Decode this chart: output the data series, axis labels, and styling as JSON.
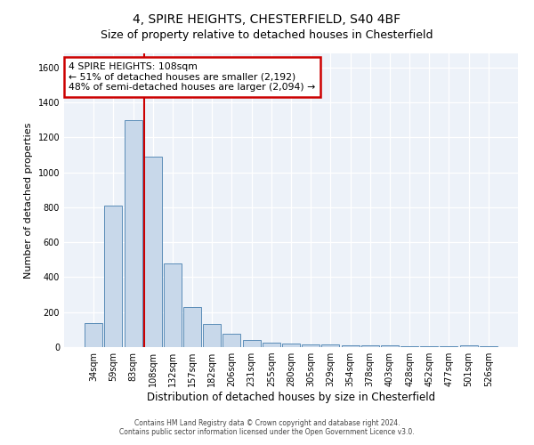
{
  "title": "4, SPIRE HEIGHTS, CHESTERFIELD, S40 4BF",
  "subtitle": "Size of property relative to detached houses in Chesterfield",
  "xlabel": "Distribution of detached houses by size in Chesterfield",
  "ylabel": "Number of detached properties",
  "bin_labels": [
    "34sqm",
    "59sqm",
    "83sqm",
    "108sqm",
    "132sqm",
    "157sqm",
    "182sqm",
    "206sqm",
    "231sqm",
    "255sqm",
    "280sqm",
    "305sqm",
    "329sqm",
    "354sqm",
    "378sqm",
    "403sqm",
    "428sqm",
    "452sqm",
    "477sqm",
    "501sqm",
    "526sqm"
  ],
  "bar_heights": [
    140,
    810,
    1300,
    1090,
    480,
    230,
    130,
    75,
    40,
    25,
    20,
    15,
    15,
    10,
    10,
    10,
    5,
    5,
    5,
    10,
    5
  ],
  "bar_color": "#c8d8ea",
  "bar_edge_color": "#5b8db8",
  "vline_color": "#cc0000",
  "annotation_text": "4 SPIRE HEIGHTS: 108sqm\n← 51% of detached houses are smaller (2,192)\n48% of semi-detached houses are larger (2,094) →",
  "annotation_box_color": "#ffffff",
  "annotation_box_edge_color": "#cc0000",
  "ylim": [
    0,
    1680
  ],
  "yticks": [
    0,
    200,
    400,
    600,
    800,
    1000,
    1200,
    1400,
    1600
  ],
  "footer_line1": "Contains HM Land Registry data © Crown copyright and database right 2024.",
  "footer_line2": "Contains public sector information licensed under the Open Government Licence v3.0.",
  "background_color": "#ffffff",
  "plot_bg_color": "#edf2f9",
  "grid_color": "#ffffff",
  "title_fontsize": 10,
  "subtitle_fontsize": 9
}
